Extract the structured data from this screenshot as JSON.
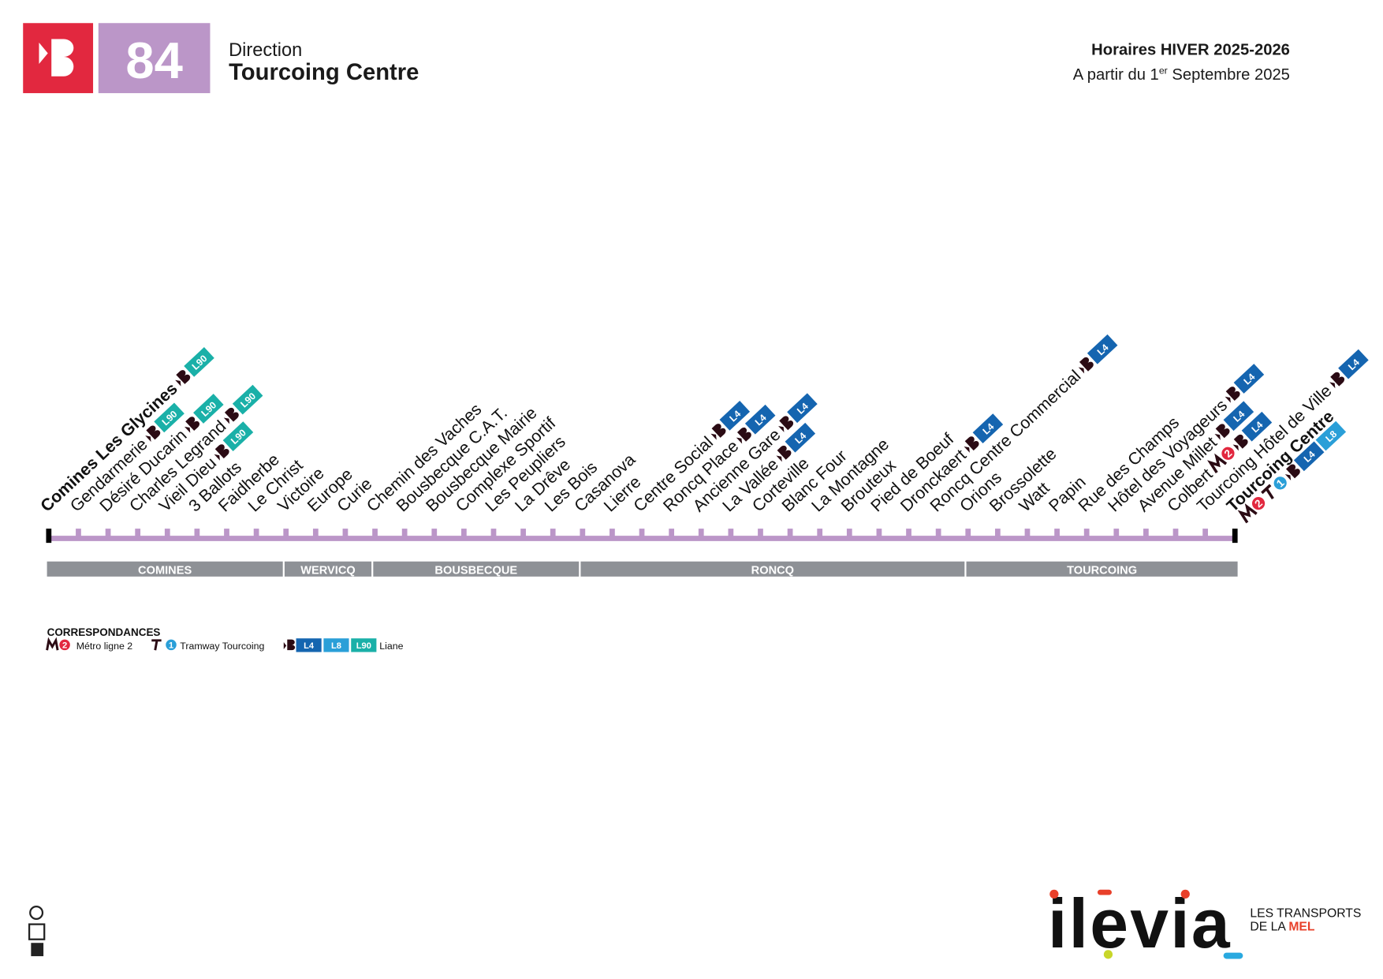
{
  "header": {
    "line_number": "84",
    "direction_label": "Direction",
    "direction": "Tourcoing Centre",
    "schedule_title": "Horaires HIVER 2025-2026",
    "validity_prefix": "A partir du 1",
    "validity_sup": "er",
    "validity_suffix": " Septembre 2025"
  },
  "stops": [
    {
      "name": "Comines Les Glycines",
      "bold": true,
      "bus": true,
      "lines": [
        "L90"
      ]
    },
    {
      "name": "Gendarmerie",
      "bus": true,
      "lines": [
        "L90"
      ]
    },
    {
      "name": "Désiré Ducarin",
      "bus": true,
      "lines": [
        "L90"
      ]
    },
    {
      "name": "Charles Legrand",
      "bus": true,
      "lines": [
        "L90"
      ]
    },
    {
      "name": "Vieil Dieu",
      "bus": true,
      "lines": [
        "L90"
      ]
    },
    {
      "name": "3 Ballots"
    },
    {
      "name": "Faidherbe"
    },
    {
      "name": "Le Christ"
    },
    {
      "name": "Victoire"
    },
    {
      "name": "Europe"
    },
    {
      "name": "Curie"
    },
    {
      "name": "Chemin des Vaches"
    },
    {
      "name": "Bousbecque C.A.T."
    },
    {
      "name": "Bousbecque Mairie"
    },
    {
      "name": "Complexe Sportif"
    },
    {
      "name": "Les Peupliers"
    },
    {
      "name": "La Drêve"
    },
    {
      "name": "Les Bois"
    },
    {
      "name": "Casanova"
    },
    {
      "name": "Lierre"
    },
    {
      "name": "Centre Social",
      "bus": true,
      "lines": [
        "L4"
      ]
    },
    {
      "name": "Roncq Place",
      "bus": true,
      "lines": [
        "L4"
      ]
    },
    {
      "name": "Ancienne Gare",
      "bus": true,
      "lines": [
        "L4"
      ]
    },
    {
      "name": "La Vallée",
      "bus": true,
      "lines": [
        "L4"
      ]
    },
    {
      "name": "Corteville"
    },
    {
      "name": "Blanc Four"
    },
    {
      "name": "La Montagne"
    },
    {
      "name": "Brouteux"
    },
    {
      "name": "Pied de Boeuf"
    },
    {
      "name": "Dronckaert",
      "bus": true,
      "lines": [
        "L4"
      ]
    },
    {
      "name": "Roncq Centre Commercial",
      "bus": true,
      "lines": [
        "L4"
      ]
    },
    {
      "name": "Orions"
    },
    {
      "name": "Brossolette"
    },
    {
      "name": "Watt"
    },
    {
      "name": "Papin"
    },
    {
      "name": "Rue des Champs"
    },
    {
      "name": "Hôtel des Voyageurs",
      "bus": true,
      "lines": [
        "L4"
      ]
    },
    {
      "name": "Avenue Millet",
      "bus": true,
      "lines": [
        "L4"
      ]
    },
    {
      "name": "Colbert",
      "metro": "2",
      "bus": true,
      "lines": [
        "L4"
      ]
    },
    {
      "name": "Tourcoing Hôtel de Ville",
      "bus": true,
      "lines": [
        "L4"
      ]
    },
    {
      "name": "Tourcoing Centre",
      "bold": true,
      "second_row": true,
      "metro": "2",
      "tram": "1",
      "bus": true,
      "lines": [
        "L4",
        "L8"
      ]
    }
  ],
  "zones": [
    "COMINES",
    "WERVICQ",
    "BOUSBECQUE",
    "RONCQ",
    "TOURCOING"
  ],
  "legend": {
    "title": "CORRESPONDANCES",
    "metro_number": "2",
    "metro_label": "Métro ligne 2",
    "tram_number": "1",
    "tram_label": "Tramway Tourcoing",
    "lines": [
      "L4",
      "L8",
      "L90"
    ],
    "liane_label": "Liane"
  },
  "footer": {
    "logo": "ilevia",
    "tagline_1": "LES TRANSPORTS",
    "tagline_2": "DE LA ",
    "tagline_3": "MEL"
  }
}
